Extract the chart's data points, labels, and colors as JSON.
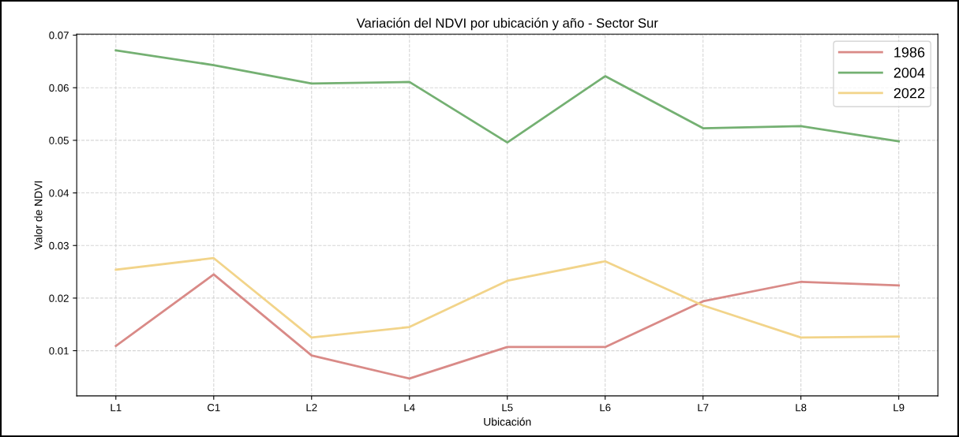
{
  "chart_data": {
    "type": "line",
    "title": "Variación del NDVI por ubicación y año - Sector Sur",
    "xlabel": "Ubicación",
    "ylabel": "Valor de NDVI",
    "categories": [
      "L1",
      "C1",
      "L2",
      "L4",
      "L5",
      "L6",
      "L7",
      "L8",
      "L9"
    ],
    "series": [
      {
        "name": "1986",
        "color": "#d98a87",
        "values": [
          0.0109,
          0.0245,
          0.0091,
          0.0047,
          0.0107,
          0.0107,
          0.0194,
          0.0231,
          0.0224
        ]
      },
      {
        "name": "2004",
        "color": "#74b072",
        "values": [
          0.0671,
          0.0643,
          0.0608,
          0.0611,
          0.0496,
          0.0622,
          0.0523,
          0.0527,
          0.0498
        ]
      },
      {
        "name": "2022",
        "color": "#f2d48a",
        "values": [
          0.0254,
          0.0276,
          0.0125,
          0.0145,
          0.0233,
          0.027,
          0.0186,
          0.0125,
          0.0127
        ]
      }
    ],
    "ylim": [
      0.0014,
      0.0702
    ],
    "yticks": [
      0.01,
      0.02,
      0.03,
      0.04,
      0.05,
      0.06,
      0.07
    ],
    "grid": true,
    "legend": "top right",
    "marker": "none",
    "line_style": "solid"
  }
}
